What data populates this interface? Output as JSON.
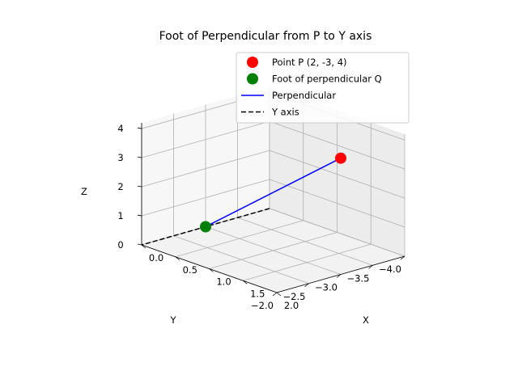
{
  "chart_data": {
    "type": "scatter",
    "projection": "3d",
    "title": "Foot of Perpendicular from P to Y axis",
    "xlabel": "X",
    "ylabel": "Y",
    "zlabel": "Z",
    "xlim": [
      0.0,
      2.0
    ],
    "ylim": [
      -4.0,
      -2.0
    ],
    "zlim": [
      0,
      4.2
    ],
    "xticks": [
      "0.0",
      "0.5",
      "1.0",
      "1.5",
      "2.0"
    ],
    "yticks": [
      "−4.0",
      "−3.5",
      "−3.0",
      "−2.5",
      "−2.0"
    ],
    "zticks": [
      "0",
      "1",
      "2",
      "3",
      "4"
    ],
    "grid": true,
    "legend_position": "top-right",
    "series": [
      {
        "name": "Point P (2, -3, 4)",
        "kind": "point",
        "color": "#ff0000",
        "points": [
          {
            "x": 2,
            "y": -3,
            "z": 4
          }
        ]
      },
      {
        "name": "Foot of perpendicular Q",
        "kind": "point",
        "color": "#008000",
        "points": [
          {
            "x": 0,
            "y": -3,
            "z": 0
          }
        ]
      },
      {
        "name": "Perpendicular",
        "kind": "line",
        "color": "#0000ff",
        "dash": "solid",
        "points": [
          {
            "x": 2,
            "y": -3,
            "z": 4
          },
          {
            "x": 0,
            "y": -3,
            "z": 0
          }
        ]
      },
      {
        "name": "Y axis",
        "kind": "line",
        "color": "#000000",
        "dash": "dashed",
        "points": [
          {
            "x": 0,
            "y": -4,
            "z": 0
          },
          {
            "x": 0,
            "y": -2,
            "z": 0
          }
        ]
      }
    ]
  }
}
